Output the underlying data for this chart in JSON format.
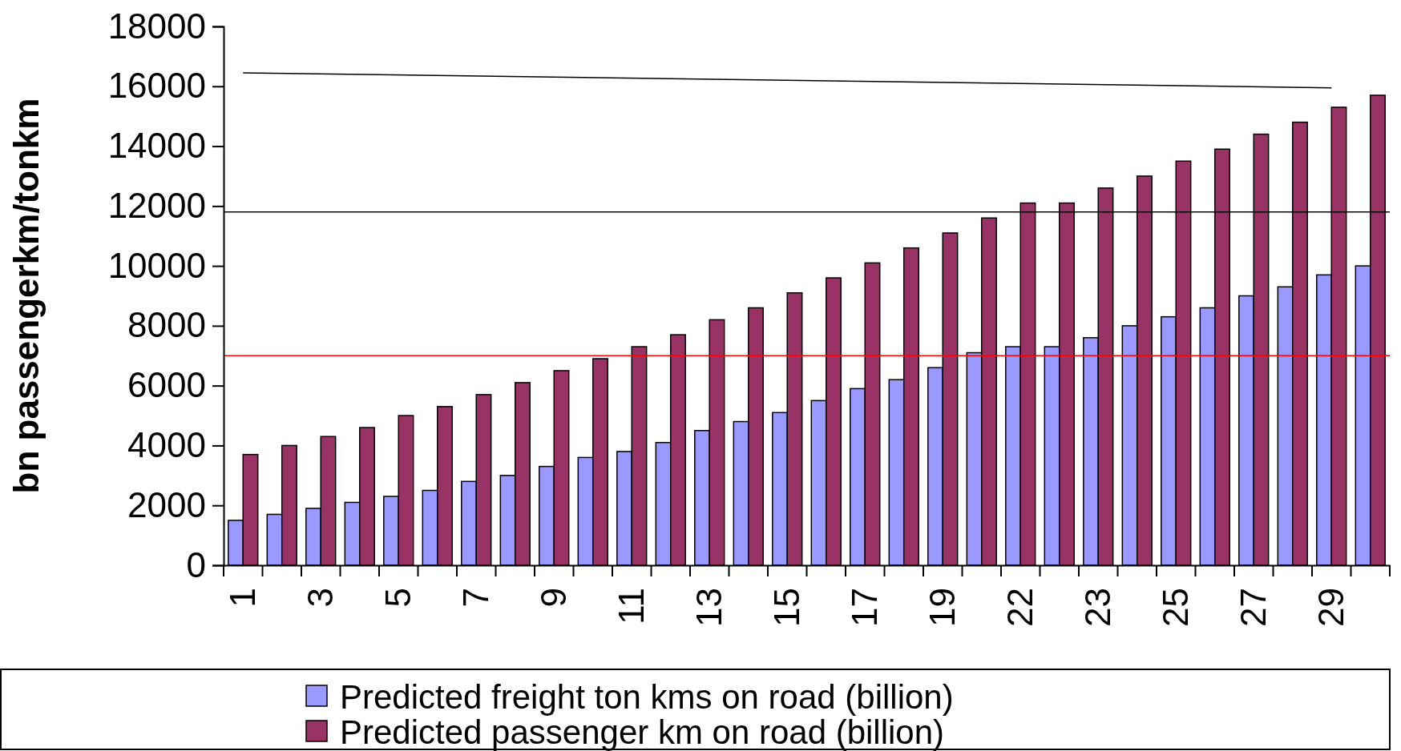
{
  "chart_data": {
    "type": "bar",
    "ylabel": "bn passengerkm/tonkm",
    "categories": [
      "1",
      null,
      "3",
      null,
      "5",
      null,
      "7",
      null,
      "9",
      null,
      "11",
      null,
      "13",
      null,
      "15",
      null,
      "17",
      null,
      "19",
      null,
      "22",
      null,
      "23",
      null,
      "25",
      null,
      "27",
      null,
      "29",
      null
    ],
    "series": [
      {
        "name": "Predicted freight ton kms on road (billion)",
        "color": "#9999ff",
        "values": [
          1500,
          1700,
          1900,
          2100,
          2300,
          2500,
          2800,
          3000,
          3300,
          3600,
          3800,
          4100,
          4500,
          4800,
          5100,
          5500,
          5900,
          6200,
          6600,
          7100,
          7300,
          7300,
          7600,
          8000,
          8300,
          8600,
          9000,
          9300,
          9700,
          10000
        ]
      },
      {
        "name": "Predicted passenger km on road (billion)",
        "color": "#993366",
        "values": [
          3700,
          4000,
          4300,
          4600,
          5000,
          5300,
          5700,
          6100,
          6500,
          6900,
          7300,
          7700,
          8200,
          8600,
          9100,
          9600,
          10100,
          10600,
          11100,
          11600,
          12100,
          12100,
          12600,
          13000,
          13500,
          13900,
          14400,
          14800,
          15300,
          15700
        ]
      },
      {
        "type": "line",
        "color": "#000000",
        "x": [
          "1",
          "29"
        ],
        "values": [
          16450,
          15950
        ]
      }
    ],
    "ylim": [
      0,
      18000
    ],
    "yticks": [
      0,
      2000,
      4000,
      6000,
      8000,
      10000,
      12000,
      14000,
      16000,
      18000
    ],
    "ref_lines": [
      {
        "axis": "y",
        "value": 11800,
        "color": "#000000"
      },
      {
        "axis": "y",
        "value": 7000,
        "color": "#ff0000"
      }
    ],
    "legend": "bottom",
    "marker": "none",
    "grid": false
  }
}
